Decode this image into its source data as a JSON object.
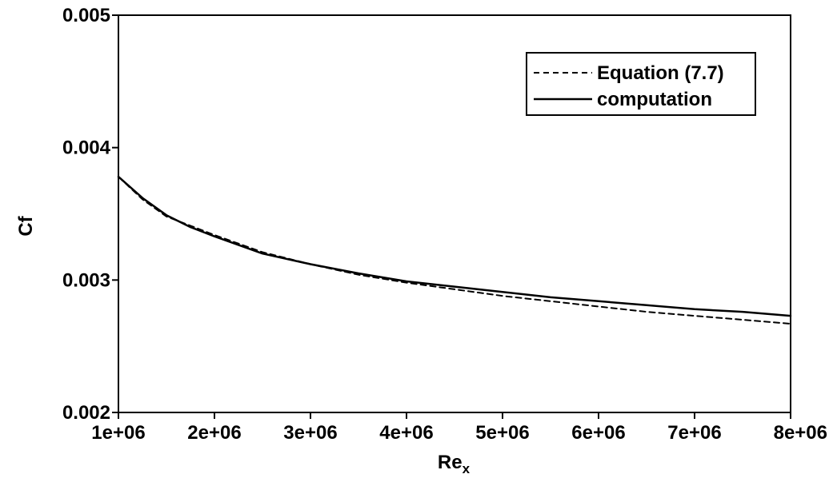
{
  "chart_data": {
    "type": "line",
    "title": "",
    "xlabel": "Re",
    "xlabel_subscript": "x",
    "ylabel": "Cf",
    "xlim": [
      1000000,
      8000000
    ],
    "ylim": [
      0.002,
      0.005
    ],
    "xticks": [
      1000000,
      2000000,
      3000000,
      4000000,
      5000000,
      6000000,
      7000000,
      8000000
    ],
    "xtick_labels": [
      "1e+06",
      "2e+06",
      "3e+06",
      "4e+06",
      "5e+06",
      "6e+06",
      "7e+06",
      "8e+06"
    ],
    "yticks": [
      0.002,
      0.003,
      0.004,
      0.005
    ],
    "ytick_labels": [
      "0.002",
      "0.003",
      "0.004",
      "0.005"
    ],
    "grid": false,
    "legend_position": "top-right",
    "series": [
      {
        "name": "Equation (7.7)",
        "style": "dashed",
        "color": "#000000",
        "x": [
          1000000,
          1250000,
          1500000,
          1750000,
          2000000,
          2500000,
          3000000,
          3500000,
          4000000,
          4500000,
          5000000,
          5500000,
          6000000,
          6500000,
          7000000,
          7500000,
          8000000
        ],
        "y": [
          0.00378,
          0.00361,
          0.00348,
          0.00341,
          0.00334,
          0.00321,
          0.00312,
          0.00304,
          0.00298,
          0.00293,
          0.00288,
          0.00284,
          0.0028,
          0.00276,
          0.00273,
          0.0027,
          0.00267
        ]
      },
      {
        "name": "computation",
        "style": "solid",
        "color": "#000000",
        "x": [
          1000000,
          1250000,
          1500000,
          1750000,
          2000000,
          2500000,
          3000000,
          3500000,
          4000000,
          4500000,
          5000000,
          5500000,
          6000000,
          6500000,
          7000000,
          7500000,
          8000000
        ],
        "y": [
          0.00378,
          0.00362,
          0.00349,
          0.0034,
          0.00333,
          0.0032,
          0.00312,
          0.00305,
          0.00299,
          0.00295,
          0.00291,
          0.00287,
          0.00284,
          0.00281,
          0.00278,
          0.00276,
          0.00273
        ]
      }
    ]
  }
}
